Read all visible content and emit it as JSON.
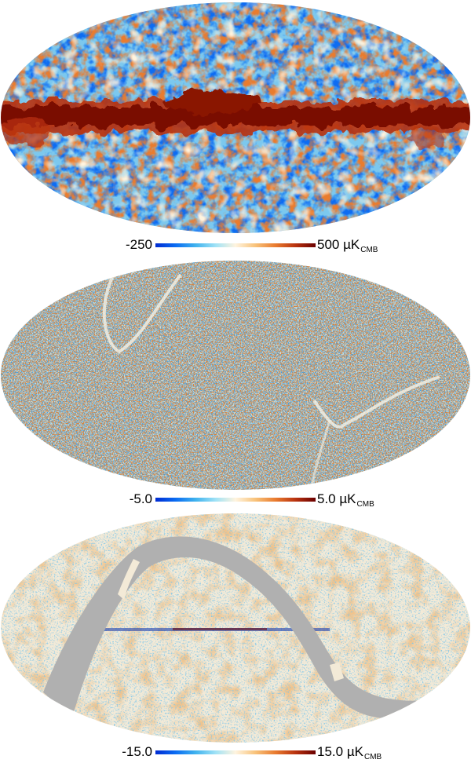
{
  "panels": [
    {
      "name": "frequency-map",
      "colorbar": {
        "min_label": "-250",
        "max_label": "500",
        "unit_prefix": "µK",
        "unit_sub": "CMB",
        "min_value": -250,
        "max_value": 500
      }
    },
    {
      "name": "noise-map",
      "colorbar": {
        "min_label": "-5.0",
        "max_label": "5.0",
        "unit_prefix": "µK",
        "unit_sub": "CMB",
        "min_value": -5.0,
        "max_value": 5.0
      }
    },
    {
      "name": "difference-map",
      "colorbar": {
        "min_label": "-15.0",
        "max_label": "15.0",
        "unit_prefix": "µK",
        "unit_sub": "CMB",
        "min_value": -15.0,
        "max_value": 15.0
      }
    }
  ],
  "colors": {
    "colormap": [
      "#002bd2",
      "#0a6cf2",
      "#3fb2ee",
      "#9fe2f6",
      "#fff4df",
      "#f8c27a",
      "#e97b2f",
      "#b8320f",
      "#6a0000"
    ],
    "mask_gray": "#b0b0b0",
    "galactic_red": "#7a0a00"
  }
}
